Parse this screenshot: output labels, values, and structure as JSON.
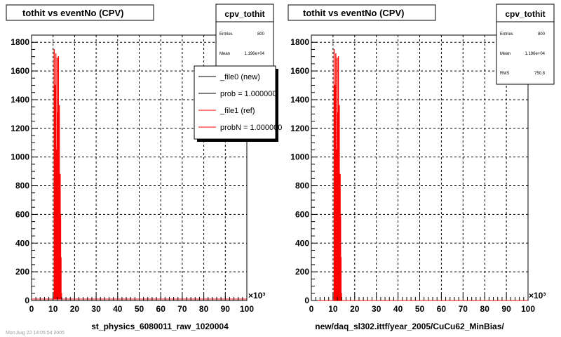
{
  "footer_text": "Mon Aug 22 14:05:54 2005",
  "chart_data": [
    {
      "type": "histogram",
      "title": "tothit vs eventNo (CPV)",
      "xlabel": "st_physics_6080011_raw_1020004",
      "ylabel": "",
      "x_multiplier": "×10³",
      "xlim": [
        0,
        100
      ],
      "ylim": [
        0,
        1850
      ],
      "xticks": [
        0,
        10,
        20,
        30,
        40,
        50,
        60,
        70,
        80,
        90,
        100
      ],
      "yticks": [
        0,
        200,
        400,
        600,
        800,
        1000,
        1200,
        1400,
        1600,
        1800
      ],
      "grid": true,
      "stats": {
        "title": "cpv_tothit",
        "rows": [
          {
            "label": "Entries",
            "value": "800"
          },
          {
            "label": "Mean",
            "value": "1.196e+04"
          }
        ]
      },
      "legend": {
        "placement": "top-right",
        "entries": [
          {
            "label": "_file0 (new)",
            "color": "#000000"
          },
          {
            "label": "prob = 1.000000",
            "color": "#000000"
          },
          {
            "label": "_file1 (ref)",
            "color": "#ff0000"
          },
          {
            "label": "probN = 1.000000",
            "color": "#ff0000"
          }
        ]
      },
      "series": [
        {
          "name": "_file1 (ref)",
          "color": "#ff0000",
          "x": [
            10.5,
            10.7,
            10.9,
            11.1,
            11.3,
            11.5,
            11.7,
            11.9,
            12.1,
            12.3,
            12.5,
            12.7,
            12.9,
            13.1,
            13.3,
            13.5,
            13.7,
            13.9
          ],
          "y": [
            1750,
            400,
            1500,
            1350,
            1720,
            420,
            1050,
            1690,
            450,
            1310,
            1700,
            430,
            1360,
            270,
            880,
            600,
            300,
            50
          ],
          "baseline": 10
        }
      ]
    },
    {
      "type": "histogram",
      "title": "tothit vs eventNo (CPV)",
      "xlabel": "new/daq_sl302.ittf/year_2005/CuCu62_MinBias/",
      "ylabel": "",
      "x_multiplier": "×10³",
      "xlim": [
        0,
        100
      ],
      "ylim": [
        0,
        1850
      ],
      "xticks": [
        0,
        10,
        20,
        30,
        40,
        50,
        60,
        70,
        80,
        90,
        100
      ],
      "yticks": [
        0,
        200,
        400,
        600,
        800,
        1000,
        1200,
        1400,
        1600,
        1800
      ],
      "grid": true,
      "stats": {
        "title": "cpv_tothit",
        "rows": [
          {
            "label": "Entries",
            "value": "800"
          },
          {
            "label": "Mean",
            "value": "1.196e+04"
          },
          {
            "label": "RMS",
            "value": "750.8"
          }
        ]
      },
      "series": [
        {
          "name": "",
          "color": "#ff0000",
          "x": [
            10.5,
            10.7,
            10.9,
            11.1,
            11.3,
            11.5,
            11.7,
            11.9,
            12.1,
            12.3,
            12.5,
            12.7,
            12.9,
            13.1,
            13.3,
            13.5,
            13.7,
            13.9
          ],
          "y": [
            1750,
            400,
            1500,
            1350,
            1720,
            420,
            1050,
            1690,
            450,
            1310,
            1700,
            430,
            1360,
            270,
            880,
            600,
            300,
            50
          ],
          "baseline": 0
        }
      ]
    }
  ]
}
